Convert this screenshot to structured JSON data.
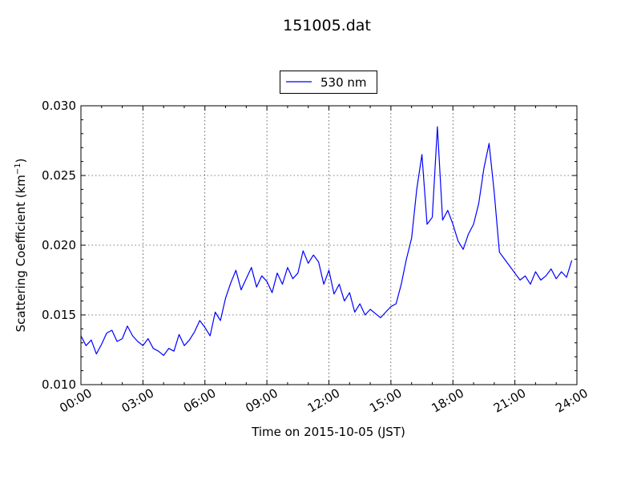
{
  "chart_data": {
    "type": "line",
    "title": "151005.dat",
    "xlabel": "Time on 2015-10-05 (JST)",
    "ylabel_main": "Scattering Coefficient (km",
    "ylabel_sup": "−1",
    "ylabel_tail": ")",
    "xlim_hours": [
      0,
      24
    ],
    "ylim": [
      0.01,
      0.03
    ],
    "x_tick_labels": [
      "00:00",
      "03:00",
      "06:00",
      "09:00",
      "12:00",
      "15:00",
      "18:00",
      "21:00",
      "24:00"
    ],
    "y_tick_labels": [
      "0.010",
      "0.015",
      "0.020",
      "0.025",
      "0.030"
    ],
    "grid": true,
    "legend_position": "top-center",
    "series": [
      {
        "name": "530 nm",
        "color": "#0000ff",
        "x_hours": [
          0.0,
          0.25,
          0.5,
          0.75,
          1.0,
          1.25,
          1.5,
          1.75,
          2.0,
          2.25,
          2.5,
          2.75,
          3.0,
          3.25,
          3.5,
          3.75,
          4.0,
          4.25,
          4.5,
          4.75,
          5.0,
          5.25,
          5.5,
          5.75,
          6.0,
          6.25,
          6.5,
          6.75,
          7.0,
          7.25,
          7.5,
          7.75,
          8.0,
          8.25,
          8.5,
          8.75,
          9.0,
          9.25,
          9.5,
          9.75,
          10.0,
          10.25,
          10.5,
          10.75,
          11.0,
          11.25,
          11.5,
          11.75,
          12.0,
          12.25,
          12.5,
          12.75,
          13.0,
          13.25,
          13.5,
          13.75,
          14.0,
          14.25,
          14.5,
          14.75,
          15.0,
          15.25,
          15.5,
          15.75,
          16.0,
          16.25,
          16.5,
          16.75,
          17.0,
          17.25,
          17.5,
          17.75,
          18.0,
          18.25,
          18.5,
          18.75,
          19.0,
          19.25,
          19.5,
          19.75,
          20.0,
          20.25,
          20.5,
          20.75,
          21.0,
          21.25,
          21.5,
          21.75,
          22.0,
          22.25,
          22.5,
          22.75,
          23.0,
          23.25,
          23.5,
          23.75
        ],
        "values": [
          0.0135,
          0.0128,
          0.0132,
          0.0122,
          0.0129,
          0.0137,
          0.0139,
          0.0131,
          0.0133,
          0.0142,
          0.0135,
          0.0131,
          0.0128,
          0.0133,
          0.0126,
          0.0124,
          0.0121,
          0.0126,
          0.0124,
          0.0136,
          0.0128,
          0.0132,
          0.0138,
          0.0146,
          0.0141,
          0.0135,
          0.0152,
          0.0146,
          0.0162,
          0.0173,
          0.0182,
          0.0168,
          0.0176,
          0.0184,
          0.017,
          0.0178,
          0.0174,
          0.0166,
          0.018,
          0.0172,
          0.0184,
          0.0176,
          0.018,
          0.0196,
          0.0187,
          0.0193,
          0.0188,
          0.0172,
          0.0182,
          0.0165,
          0.0172,
          0.016,
          0.0166,
          0.0152,
          0.0158,
          0.015,
          0.0154,
          0.0151,
          0.0148,
          0.0152,
          0.0156,
          0.0158,
          0.0172,
          0.019,
          0.0205,
          0.024,
          0.0265,
          0.0215,
          0.022,
          0.0285,
          0.0218,
          0.0225,
          0.0215,
          0.0203,
          0.0197,
          0.0208,
          0.0215,
          0.023,
          0.0255,
          0.0273,
          0.0238,
          0.0195,
          0.019,
          0.0185,
          0.018,
          0.0175,
          0.0178,
          0.0172,
          0.0181,
          0.0175,
          0.0178,
          0.0183,
          0.0176,
          0.0181,
          0.0177,
          0.0189
        ]
      }
    ]
  }
}
